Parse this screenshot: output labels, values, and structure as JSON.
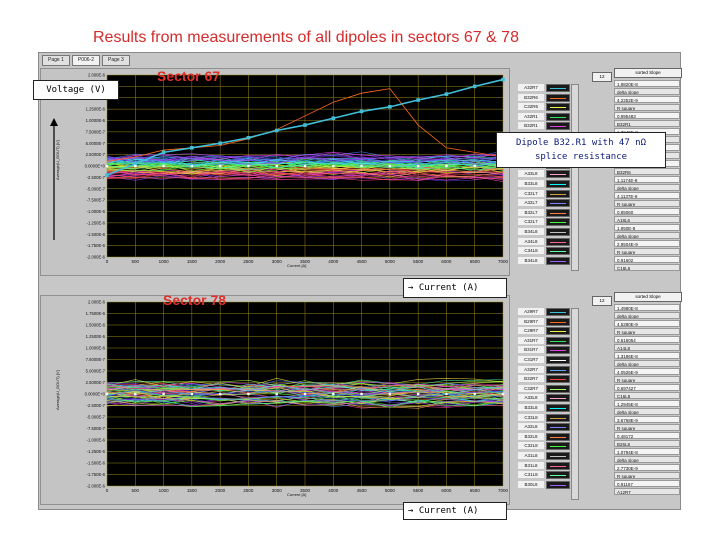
{
  "slide": {
    "title": "Results from measurements of all dipoles in sectors 67 & 78"
  },
  "tabs": [
    "Page 1",
    "P006-2",
    "Page 3"
  ],
  "annotations": {
    "voltage": "Voltage (V)",
    "current_top": "→ Current (A)",
    "current_bottom": "→ Current (A)",
    "dipole_line1": "Dipole B32.R1 with 47 nΩ",
    "dipole_line2": "splice resistance"
  },
  "colors": {
    "title": "#d42b2b",
    "sector": "#e0302a",
    "plot_bg": "#000000",
    "grid": "#9a8a1c",
    "highlight": "#40c0d8",
    "accent_series": "#ff6a1a"
  },
  "panels": {
    "top": {
      "sector_label": "Sector 67",
      "x_axis_label": "Current [A]",
      "y_axis_label": "Average(U_BOUT) [V]",
      "legend": [
        "A32R7",
        "B32R6",
        "C32R6",
        "A32R1",
        "B32R1",
        "C33R7",
        "A33R7",
        "B33R7",
        "C33R7",
        "A33L8",
        "B33L8",
        "C32L7",
        "A32L7",
        "B32L7",
        "C32L7",
        "B34L8",
        "A34L8",
        "C34L8",
        "B34L8"
      ],
      "stats_header": "sorted Slope",
      "stats": [
        {
          "value": "1.9820E-8",
          "label": "delta slope"
        },
        {
          "value": "4.2252E-9",
          "label": "R square"
        },
        {
          "value": "0.995483",
          "label": "B32R1"
        },
        {
          "value": "1.7640E-8",
          "label": "delta slope"
        },
        {
          "value": "3.3461E-9",
          "label": "R square"
        },
        {
          "value": "0.78310",
          "label": "B32R6"
        },
        {
          "value": "1.1174E-8",
          "label": "delta slope"
        },
        {
          "value": "4.1137E-9",
          "label": "R square"
        },
        {
          "value": "0.85060",
          "label": "A18L6"
        },
        {
          "value": "1.950E-8",
          "label": "delta slope"
        },
        {
          "value": "2.9504E-9",
          "label": "R square"
        },
        {
          "value": "0.91602",
          "label": "C18L6"
        }
      ]
    },
    "bottom": {
      "sector_label": "Sector 78",
      "x_axis_label": "Current [A]",
      "y_axis_label": "Average(U_BOUT) [V]",
      "legend": [
        "A29R7",
        "B29R7",
        "C29R7",
        "A31R7",
        "B31R7",
        "C31R7",
        "A32R7",
        "B32R7",
        "C32R7",
        "A33L8",
        "B33L8",
        "C33L8",
        "A32L8",
        "B32L8",
        "C32L8",
        "A31L8",
        "B31L8",
        "C31L8",
        "B30L8"
      ],
      "stats_header": "sorted Slope",
      "stats": [
        {
          "value": "1.4980E-8",
          "label": "delta slope"
        },
        {
          "value": "4.5280E-9",
          "label": "R square"
        },
        {
          "value": "0.616054",
          "label": "A14L8"
        },
        {
          "value": "1.3186E-8",
          "label": "delta slope"
        },
        {
          "value": "4.0526E-9",
          "label": "R square"
        },
        {
          "value": "0.697427",
          "label": "C16L8"
        },
        {
          "value": "1.2945E-8",
          "label": "delta slope"
        },
        {
          "value": "3.6768E-9",
          "label": "R square"
        },
        {
          "value": "0.48172",
          "label": "B26L8"
        },
        {
          "value": "1.0794E-8",
          "label": "delta slope"
        },
        {
          "value": "2.7730E-9",
          "label": "R square"
        },
        {
          "value": "0.91167",
          "label": "A12R7"
        }
      ]
    }
  },
  "chart_data": [
    {
      "type": "line",
      "x": [
        0,
        500,
        1000,
        1500,
        2000,
        2500,
        3000,
        3500,
        4000,
        4500,
        5000,
        5500,
        6000,
        6500,
        7000
      ],
      "xlim": [
        0,
        7000
      ],
      "ylim": [
        -2e-06,
        2e-06
      ],
      "xlabel": "Current [A]",
      "ylabel": "Average(U_BOUT) [V]",
      "x_ticks": [
        "0",
        "500",
        "1000",
        "1500",
        "2000",
        "2500",
        "3000",
        "3500",
        "4000",
        "4500",
        "5000",
        "5500",
        "6000",
        "6500",
        "7000"
      ],
      "y_ticks": [
        "2.000E-6",
        "1.7500E-6",
        "1.5000E-6",
        "1.2500E-6",
        "1.0000E-6",
        "7.5000E-7",
        "5.0000E-7",
        "2.5000E-7",
        "0.0000E+0",
        "-2.500E-7",
        "-5.000E-7",
        "-7.500E-7",
        "-1.000E-6",
        "-1.250E-6",
        "-1.500E-6",
        "-1.750E-6",
        "-2.000E-6"
      ],
      "highlight_series": {
        "name": "B32R1",
        "values": [
          -2e-07,
          5e-08,
          3e-07,
          4e-07,
          5e-07,
          6.2e-07,
          7.8e-07,
          9e-07,
          1.05e-06,
          1.2e-06,
          1.3e-06,
          1.45e-06,
          1.58e-06,
          1.75e-06,
          1.9e-06
        ]
      },
      "accent_series": {
        "name": "B32R6",
        "values": [
          1e-07,
          2e-07,
          3.5e-07,
          4e-07,
          4.5e-07,
          6e-07,
          8e-07,
          1.1e-06,
          1.4e-06,
          1.6e-06,
          1.7e-06,
          9e-07,
          4e-07,
          3e-07,
          2e-07
        ]
      },
      "band": {
        "series_count": 60,
        "center": 0.0,
        "spread": 5e-07
      }
    },
    {
      "type": "line",
      "x": [
        0,
        500,
        1000,
        1500,
        2000,
        2500,
        3000,
        3500,
        4000,
        4500,
        5000,
        5500,
        6000,
        6500,
        7000
      ],
      "xlim": [
        0,
        7000
      ],
      "ylim": [
        -2e-06,
        2e-06
      ],
      "xlabel": "Current [A]",
      "ylabel": "Average(U_BOUT) [V]",
      "x_ticks": [
        "0",
        "500",
        "1000",
        "1500",
        "2000",
        "2500",
        "3000",
        "3500",
        "4000",
        "4500",
        "5000",
        "5500",
        "6000",
        "6500",
        "7000"
      ],
      "y_ticks": [
        "2.000E-6",
        "1.7500E-6",
        "1.5000E-6",
        "1.2500E-6",
        "1.0000E-6",
        "7.5000E-7",
        "5.0000E-7",
        "2.5000E-7",
        "0.0000E+0",
        "-2.500E-7",
        "-5.000E-7",
        "-7.500E-7",
        "-1.000E-6",
        "-1.250E-6",
        "-1.500E-6",
        "-1.750E-6",
        "-2.000E-6"
      ],
      "band": {
        "series_count": 60,
        "center": 0.0,
        "spread": 5e-07
      }
    }
  ]
}
